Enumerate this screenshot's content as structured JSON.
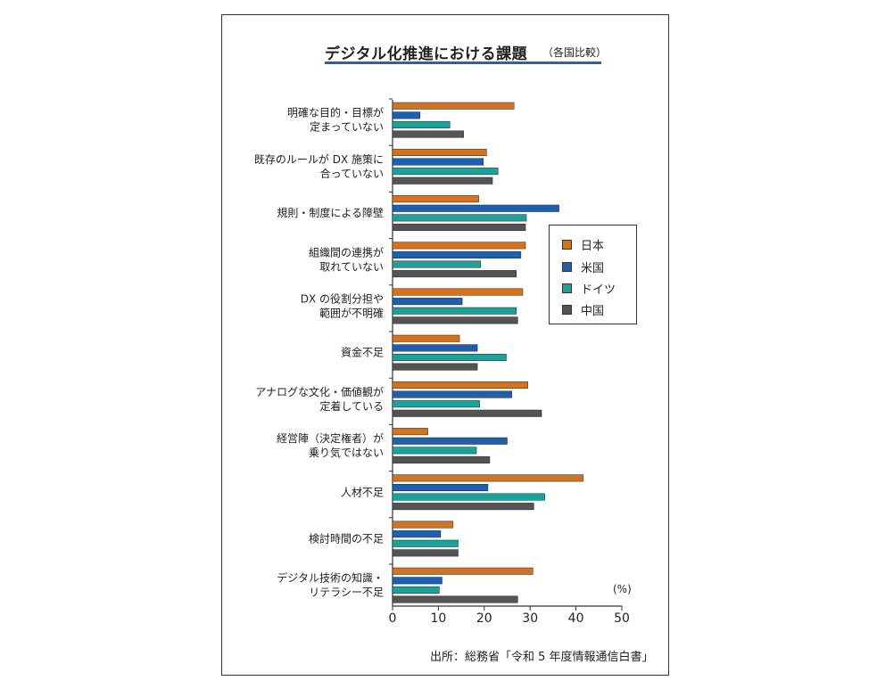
{
  "chart_data": {
    "type": "bar",
    "orientation": "horizontal",
    "title": "デジタル化推進における課題",
    "subtitle": "（各国比較）",
    "unit_label": "(%)",
    "source": "出所：総務省「令和 5 年度情報通信白書」",
    "xlim": [
      0,
      50
    ],
    "xticks": [
      0,
      10,
      20,
      30,
      40,
      50
    ],
    "categories": [
      [
        "明確な目的・目標が",
        "定まっていない"
      ],
      [
        "既存のルールが DX 施策に",
        "合っていない"
      ],
      [
        "規則・制度による障壁"
      ],
      [
        "組織間の連携が",
        "取れていない"
      ],
      [
        "DX の役割分担や",
        "範囲が不明確"
      ],
      [
        "資金不足"
      ],
      [
        "アナログな文化・価値観が",
        "定着している"
      ],
      [
        "経営陣（決定権者）が",
        "乗り気ではない"
      ],
      [
        "人材不足"
      ],
      [
        "検討時間の不足"
      ],
      [
        "デジタル技術の知識・",
        "リテラシー不足"
      ]
    ],
    "series": [
      {
        "name": "日本",
        "color": "#d2741f",
        "values": [
          26.5,
          20.5,
          18.8,
          29.0,
          28.4,
          14.6,
          29.5,
          7.7,
          41.6,
          13.2,
          30.6
        ]
      },
      {
        "name": "米国",
        "color": "#1f5fb0",
        "values": [
          6.0,
          19.8,
          36.3,
          28.0,
          15.2,
          18.5,
          26.0,
          25.0,
          20.8,
          10.5,
          10.8
        ]
      },
      {
        "name": "ドイツ",
        "color": "#1aa39a",
        "values": [
          12.5,
          23.0,
          29.2,
          19.2,
          27.0,
          24.8,
          19.0,
          18.3,
          33.2,
          14.3,
          10.2
        ]
      },
      {
        "name": "中国",
        "color": "#545454",
        "values": [
          15.5,
          21.8,
          29.0,
          27.0,
          27.3,
          18.5,
          32.5,
          21.2,
          30.8,
          14.3,
          27.3
        ]
      }
    ],
    "legend_position": "right"
  }
}
